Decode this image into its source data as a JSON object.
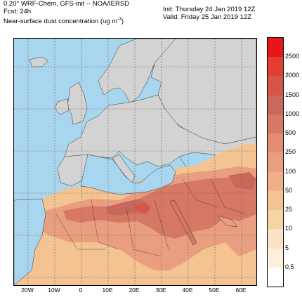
{
  "header": {
    "line1_left": "0.20° WRF-Chem, GFS-init -- NOA/IERSD",
    "line2_left": "Fcst: 24h",
    "line3_left": "Near-surface dust concentration (ug m",
    "line3_sup": "-3",
    "line3_end": ")",
    "init": "Init: Thursday 24 Jan 2019  12Z",
    "valid": "Valid: Friday 25 Jan 2019  12Z"
  },
  "legend": {
    "labels": [
      "2500",
      "2000",
      "1500",
      "1000",
      "500",
      "250",
      "100",
      "50",
      "25",
      "10",
      "5",
      "0.5"
    ],
    "colors": [
      "#e8151b",
      "#e23e32",
      "#d55648",
      "#c8685a",
      "#d67863",
      "#e28d72",
      "#ea9e80",
      "#efb089",
      "#f3c391",
      "#f6d5a5",
      "#f9e3c4",
      "#fbf0de",
      "#ffffff"
    ]
  },
  "x_axis": {
    "labels": [
      "20W",
      "10W",
      "0",
      "10E",
      "20E",
      "30E",
      "40E",
      "50E",
      "60E"
    ]
  },
  "map": {
    "ocean_color": "#a9d6ef",
    "land_color": "#d3d3d3",
    "region": "Europe, North Africa, Middle East"
  }
}
